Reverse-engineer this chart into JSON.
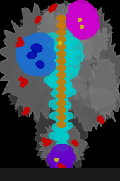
{
  "bg_color": "#000000",
  "base_color": "#1a1a1a",
  "gray_blob_color": "#808080",
  "gray_blob_dark": "#606060",
  "cyan_color": "#00CCCC",
  "blue_color": "#1E6FCC",
  "orange_color": "#CC7700",
  "magenta_color": "#CC00CC",
  "purple_color": "#6600CC",
  "red_color": "#CC0000",
  "yellow_color": "#CCCC00",
  "dark_blue": "#0000AA",
  "figsize": [
    1.7,
    2.56
  ],
  "dpi": 100
}
